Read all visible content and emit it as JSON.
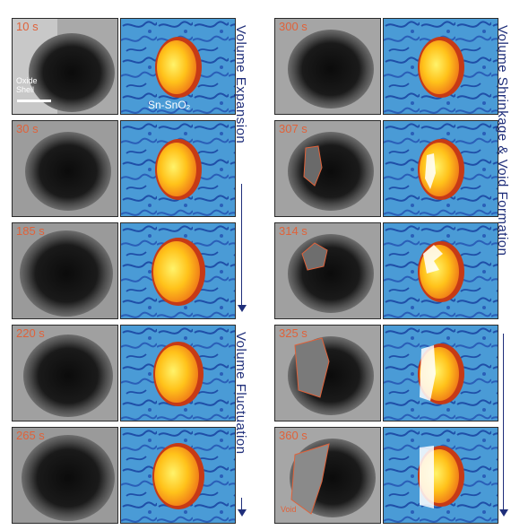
{
  "labels": {
    "oxide_shell": "Oxide\nShell",
    "sn_sno2": "Sn-SnO₂",
    "void": "Void"
  },
  "left_column": {
    "timestamps": [
      "10 s",
      "30 s",
      "185 s",
      "220 s",
      "265 s"
    ],
    "section_labels": [
      "Volume Expansion",
      "Volume Fluctuation"
    ]
  },
  "right_column": {
    "timestamps": [
      "300 s",
      "307 s",
      "314 s",
      "325 s",
      "360 s"
    ],
    "section_label": "Volume Shrinkage & Void Formation"
  },
  "colors": {
    "accent_text": "#e0623a",
    "arrow": "#1f2e7a",
    "schematic_bg": "#3f8fcf",
    "sphere_core": "#ffd21a",
    "sphere_shell": "#d64a1f"
  }
}
